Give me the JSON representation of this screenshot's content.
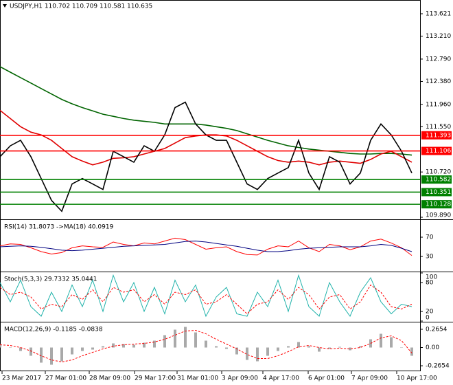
{
  "chart_data": [
    {
      "type": "line",
      "title": "USDJPY,H1  110.702 110.709 110.581 110.635",
      "x": [
        0,
        15,
        30,
        45,
        60,
        75,
        90,
        105,
        120,
        135,
        150,
        165,
        180,
        195,
        210,
        225,
        240,
        255,
        270,
        285,
        300,
        315,
        330,
        345,
        360,
        375,
        390,
        405,
        420,
        435,
        450,
        465,
        480,
        495,
        510,
        525,
        540,
        555,
        570,
        585,
        600
      ],
      "xlim": [
        0,
        612
      ],
      "ylim": [
        109.865,
        113.873
      ],
      "yticks": [
        113.621,
        {
          "value": 113.21,
          "label": "113.210"
        },
        {
          "value": 112.79,
          "label": "112.790"
        },
        {
          "value": 112.38,
          "label": "112.380"
        },
        {
          "value": 111.96,
          "label": "111.960"
        },
        {
          "value": 111.55,
          "label": "111.550"
        },
        {
          "value": 110.72,
          "label": "110.720"
        },
        {
          "value": 109.89,
          "label": "109.890"
        }
      ],
      "series": [
        {
          "color": "#006400",
          "values": [
            112.65,
            112.55,
            112.45,
            112.35,
            112.25,
            112.15,
            112.05,
            111.97,
            111.9,
            111.84,
            111.78,
            111.74,
            111.7,
            111.67,
            111.65,
            111.63,
            111.6,
            111.6,
            111.6,
            111.6,
            111.58,
            111.55,
            111.52,
            111.48,
            111.42,
            111.36,
            111.3,
            111.25,
            111.2,
            111.17,
            111.14,
            111.12,
            111.1,
            111.08,
            111.06,
            111.05,
            111.05,
            111.06,
            111.06,
            111.05,
            111.03
          ]
        },
        {
          "color": "#e00000",
          "values": [
            111.85,
            111.7,
            111.55,
            111.45,
            111.4,
            111.3,
            111.15,
            111.0,
            110.92,
            110.85,
            110.9,
            110.97,
            110.98,
            111.0,
            111.05,
            111.1,
            111.15,
            111.25,
            111.35,
            111.38,
            111.4,
            111.4,
            111.38,
            111.3,
            111.2,
            111.1,
            111.0,
            110.93,
            110.9,
            110.92,
            110.9,
            110.85,
            110.9,
            110.92,
            110.9,
            110.88,
            110.95,
            111.05,
            111.1,
            111.0,
            110.9
          ]
        },
        {
          "color": "#000000",
          "values": [
            111.0,
            111.2,
            111.3,
            111.0,
            110.6,
            110.2,
            110.0,
            110.5,
            110.6,
            110.5,
            110.4,
            111.1,
            111.0,
            110.9,
            111.2,
            111.1,
            111.4,
            111.9,
            112.0,
            111.6,
            111.4,
            111.3,
            111.3,
            110.9,
            110.5,
            110.4,
            110.6,
            110.7,
            110.8,
            111.3,
            110.7,
            110.4,
            111.0,
            110.9,
            110.5,
            110.7,
            111.3,
            111.6,
            111.4,
            111.1,
            110.7
          ]
        }
      ],
      "levels": [
        {
          "value": 111.393,
          "color": "#ff0000"
        },
        {
          "value": 111.106,
          "color": "#ff0000"
        },
        {
          "value": 110.582,
          "color": "#008000"
        },
        {
          "value": 110.351,
          "color": "#008000"
        },
        {
          "value": 110.128,
          "color": "#008000"
        }
      ]
    },
    {
      "type": "line",
      "title": "RSI(14) 31.8073  ->MA(18) 40.0919",
      "x": [
        0,
        15,
        30,
        45,
        60,
        75,
        90,
        105,
        120,
        135,
        150,
        165,
        180,
        195,
        210,
        225,
        240,
        255,
        270,
        285,
        300,
        315,
        330,
        345,
        360,
        375,
        390,
        405,
        420,
        435,
        450,
        465,
        480,
        495,
        510,
        525,
        540,
        555,
        570,
        585,
        600
      ],
      "xlim": [
        0,
        612
      ],
      "ylim": [
        -1.4,
        104.3
      ],
      "yticks": [
        70,
        30
      ],
      "series": [
        {
          "color": "#ff0000",
          "values": [
            52,
            56,
            55,
            48,
            40,
            35,
            38,
            48,
            52,
            50,
            49,
            60,
            55,
            52,
            58,
            56,
            62,
            68,
            65,
            55,
            45,
            48,
            50,
            40,
            34,
            33,
            45,
            52,
            50,
            62,
            48,
            40,
            55,
            52,
            44,
            50,
            62,
            66,
            58,
            48,
            32
          ]
        },
        {
          "color": "#000080",
          "values": [
            50,
            51,
            52,
            51,
            49,
            46,
            43,
            42,
            43,
            45,
            47,
            49,
            51,
            52,
            53,
            54,
            55,
            58,
            61,
            62,
            60,
            57,
            54,
            51,
            47,
            43,
            40,
            40,
            42,
            45,
            47,
            48,
            49,
            50,
            50,
            50,
            52,
            55,
            53,
            47,
            40
          ]
        }
      ]
    },
    {
      "type": "line",
      "title": "Stoch(5,3,3) 29.7332 35.0441",
      "x": [
        0,
        15,
        30,
        45,
        60,
        75,
        90,
        105,
        120,
        135,
        150,
        165,
        180,
        195,
        210,
        225,
        240,
        255,
        270,
        285,
        300,
        315,
        330,
        345,
        360,
        375,
        390,
        405,
        420,
        435,
        450,
        465,
        480,
        495,
        510,
        525,
        540,
        555,
        570,
        585,
        600
      ],
      "xlim": [
        0,
        612
      ],
      "ylim": [
        0,
        100
      ],
      "yticks": [
        100,
        80,
        20,
        0
      ],
      "series": [
        {
          "color": "#20b2aa",
          "values": [
            80,
            40,
            85,
            30,
            10,
            60,
            20,
            75,
            30,
            85,
            20,
            95,
            40,
            80,
            20,
            70,
            15,
            85,
            40,
            75,
            10,
            50,
            70,
            15,
            10,
            60,
            30,
            85,
            20,
            95,
            30,
            10,
            80,
            40,
            10,
            60,
            90,
            40,
            15,
            35,
            30
          ]
        },
        {
          "color": "#ff0000",
          "dash": true,
          "values": [
            70,
            55,
            60,
            50,
            25,
            35,
            30,
            55,
            45,
            65,
            40,
            70,
            60,
            65,
            40,
            55,
            35,
            60,
            55,
            65,
            35,
            40,
            55,
            35,
            15,
            35,
            40,
            65,
            45,
            70,
            55,
            25,
            50,
            55,
            25,
            40,
            75,
            60,
            30,
            25,
            35
          ]
        }
      ]
    },
    {
      "type": "bar",
      "title": "MACD(12,26,9) -0.1185 -0.0838",
      "x": [
        0,
        15,
        30,
        45,
        60,
        75,
        90,
        105,
        120,
        135,
        150,
        165,
        180,
        195,
        210,
        225,
        240,
        255,
        270,
        285,
        300,
        315,
        330,
        345,
        360,
        375,
        390,
        405,
        420,
        435,
        450,
        465,
        480,
        495,
        510,
        525,
        540,
        555,
        570,
        585,
        600
      ],
      "xlim": [
        0,
        612
      ],
      "ylim": [
        -0.345,
        0.355
      ],
      "yticks": [
        0.2654,
        {
          "value": 0,
          "label": "0.00"
        },
        -0.2654
      ],
      "series": [
        {
          "kind": "bar",
          "color": "#a9a9a9",
          "values": [
            0.05,
            0.0,
            -0.05,
            -0.12,
            -0.22,
            -0.25,
            -0.2,
            -0.1,
            -0.05,
            -0.03,
            0.02,
            0.06,
            0.05,
            0.04,
            0.07,
            0.1,
            0.18,
            0.26,
            0.3,
            0.22,
            0.1,
            0.02,
            -0.02,
            -0.1,
            -0.18,
            -0.2,
            -0.12,
            -0.05,
            0.02,
            0.08,
            0.02,
            -0.06,
            -0.02,
            0.01,
            -0.04,
            0.02,
            0.12,
            0.2,
            0.15,
            0.0,
            -0.12
          ]
        },
        {
          "kind": "line",
          "color": "#ff0000",
          "dash": true,
          "values": [
            0.04,
            0.03,
            0.0,
            -0.05,
            -0.12,
            -0.18,
            -0.21,
            -0.18,
            -0.12,
            -0.07,
            -0.02,
            0.02,
            0.04,
            0.05,
            0.06,
            0.08,
            0.12,
            0.18,
            0.24,
            0.25,
            0.2,
            0.12,
            0.05,
            -0.02,
            -0.1,
            -0.16,
            -0.16,
            -0.12,
            -0.06,
            0.01,
            0.03,
            0.0,
            -0.02,
            -0.01,
            -0.02,
            0.0,
            0.06,
            0.14,
            0.17,
            0.1,
            -0.08
          ]
        }
      ],
      "xticks": [
        {
          "value": 3,
          "label": "23 Mar 2017"
        },
        {
          "value": 66,
          "label": "27 Mar 01:00"
        },
        {
          "value": 130,
          "label": "28 Mar 09:00"
        },
        {
          "value": 196,
          "label": "29 Mar 17:00"
        },
        {
          "value": 258,
          "label": "31 Mar 01:00"
        },
        {
          "value": 323,
          "label": "3 Apr 09:00"
        },
        {
          "value": 383,
          "label": "4 Apr 17:00"
        },
        {
          "value": 449,
          "label": "6 Apr 01:00"
        },
        {
          "value": 512,
          "label": "7 Apr 09:00"
        },
        {
          "value": 578,
          "label": "10 Apr 17:00"
        }
      ]
    }
  ]
}
